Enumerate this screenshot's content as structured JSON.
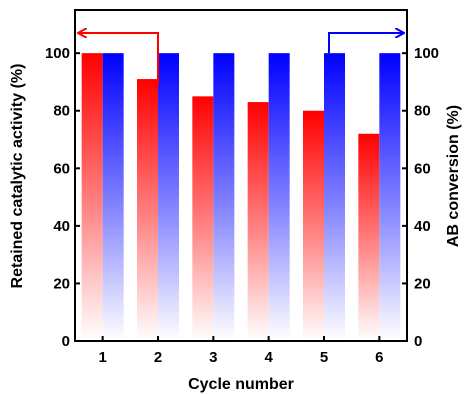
{
  "chart_data": {
    "type": "bar",
    "title": "",
    "xlabel": "Cycle number",
    "ylabel": "Retained catalytic activity (%)",
    "y2label": "AB conversion (%)",
    "categories": [
      "1",
      "2",
      "3",
      "4",
      "5",
      "6"
    ],
    "ylim": [
      0,
      115
    ],
    "y2lim": [
      0,
      115
    ],
    "yticks": [
      "0",
      "20",
      "40",
      "60",
      "80",
      "100"
    ],
    "y2ticks": [
      "0",
      "20",
      "40",
      "60",
      "80",
      "100"
    ],
    "grid": false,
    "series": [
      {
        "axis": "left",
        "color": "#ff0000",
        "values": [
          100,
          91,
          85,
          83,
          80,
          72
        ]
      },
      {
        "axis": "right",
        "color": "#0000ff",
        "values": [
          100,
          100,
          100,
          100,
          100,
          100
        ]
      }
    ],
    "annotations": [
      {
        "type": "arrow",
        "series_index": 0,
        "direction": "left",
        "meaning": "left-axis"
      },
      {
        "type": "arrow",
        "series_index": 1,
        "direction": "right",
        "meaning": "right-axis"
      }
    ]
  }
}
